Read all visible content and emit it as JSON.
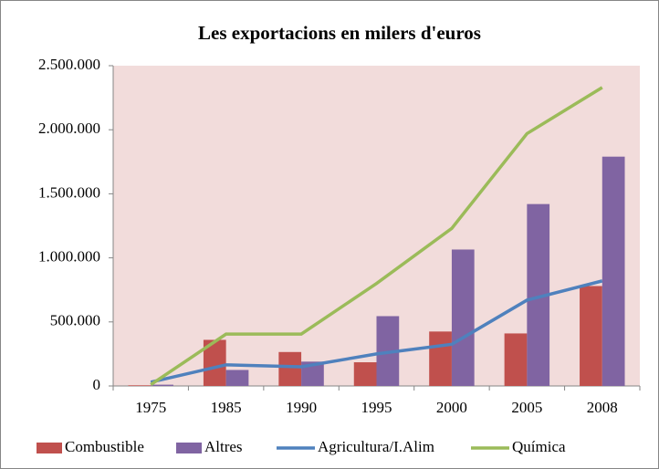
{
  "chart_data": {
    "type": "bar",
    "title": "Les exportacions en milers d'euros",
    "categories": [
      "1975",
      "1985",
      "1990",
      "1995",
      "2000",
      "2005",
      "2008"
    ],
    "series": [
      {
        "name": "Combustible",
        "type": "bar",
        "color": "#c0504d",
        "values": [
          5000,
          360000,
          265000,
          185000,
          425000,
          410000,
          780000
        ]
      },
      {
        "name": "Altres",
        "type": "bar",
        "color": "#8064a2",
        "values": [
          10000,
          125000,
          190000,
          545000,
          1065000,
          1420000,
          1790000
        ]
      },
      {
        "name": "Agricultura/I.Alim",
        "type": "line",
        "color": "#4f81bd",
        "values": [
          30000,
          165000,
          150000,
          250000,
          325000,
          670000,
          820000
        ]
      },
      {
        "name": "Química",
        "type": "line",
        "color": "#9bbb59",
        "values": [
          10000,
          405000,
          405000,
          800000,
          1230000,
          1970000,
          2330000
        ]
      }
    ],
    "ylim": [
      0,
      2500000
    ],
    "yticks": [
      0,
      {
        "value": 500000,
        "label": "500.000"
      },
      {
        "value": 1000000,
        "label": "1.000.000"
      },
      {
        "value": 1500000,
        "label": "1.500.000"
      },
      {
        "value": 2000000,
        "label": "2.000.000"
      },
      {
        "value": 2500000,
        "label": "2.500.000"
      }
    ],
    "grid": false,
    "legend": "bottom",
    "plot_background": "#f2dcdb"
  }
}
